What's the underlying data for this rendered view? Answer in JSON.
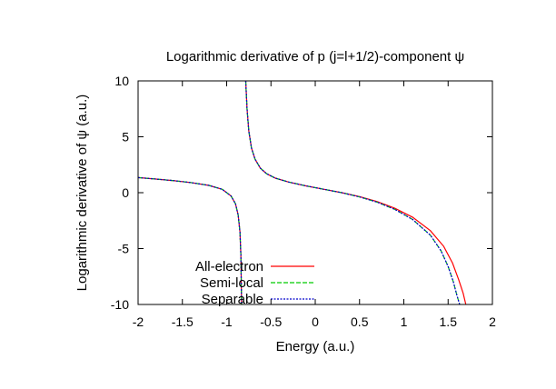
{
  "chart_data": {
    "type": "line",
    "title": "Logarithmic derivative of p (j=l+1/2)-component ψ",
    "xlabel": "Energy (a.u.)",
    "ylabel": "Logarithmic derivative of ψ (a.u.)",
    "xlim": [
      -2,
      2
    ],
    "ylim": [
      -10,
      10
    ],
    "xticks": [
      "-2",
      "-1.5",
      "-1",
      "-0.5",
      "0",
      "0.5",
      "1",
      "1.5",
      "2"
    ],
    "yticks": [
      "10",
      "5",
      "0",
      "-5",
      "-10"
    ],
    "grid": false,
    "legend_position": "bottom-left",
    "series": [
      {
        "name": "All-electron",
        "color": "#ff0000",
        "dash": "solid",
        "segments": [
          [
            [
              -2.0,
              1.35
            ],
            [
              -1.8,
              1.22
            ],
            [
              -1.6,
              1.08
            ],
            [
              -1.4,
              0.9
            ],
            [
              -1.2,
              0.65
            ],
            [
              -1.05,
              0.3
            ],
            [
              -0.95,
              -0.3
            ],
            [
              -0.9,
              -1.0
            ],
            [
              -0.87,
              -2.0
            ],
            [
              -0.85,
              -3.5
            ],
            [
              -0.84,
              -5.5
            ],
            [
              -0.835,
              -8.0
            ],
            [
              -0.832,
              -10.0
            ]
          ],
          [
            [
              -0.785,
              10.0
            ],
            [
              -0.77,
              7.5
            ],
            [
              -0.75,
              5.5
            ],
            [
              -0.72,
              4.0
            ],
            [
              -0.68,
              3.0
            ],
            [
              -0.62,
              2.2
            ],
            [
              -0.55,
              1.7
            ],
            [
              -0.45,
              1.3
            ],
            [
              -0.3,
              0.95
            ],
            [
              -0.1,
              0.6
            ],
            [
              0.1,
              0.3
            ],
            [
              0.3,
              0.0
            ],
            [
              0.5,
              -0.35
            ],
            [
              0.7,
              -0.8
            ],
            [
              0.9,
              -1.4
            ],
            [
              1.1,
              -2.2
            ],
            [
              1.3,
              -3.4
            ],
            [
              1.45,
              -4.8
            ],
            [
              1.55,
              -6.3
            ],
            [
              1.62,
              -7.8
            ],
            [
              1.67,
              -9.0
            ],
            [
              1.7,
              -10.0
            ]
          ]
        ]
      },
      {
        "name": "Semi-local",
        "color": "#00cc00",
        "dash": "dashed",
        "segments": [
          [
            [
              -2.0,
              1.35
            ],
            [
              -1.8,
              1.22
            ],
            [
              -1.6,
              1.08
            ],
            [
              -1.4,
              0.9
            ],
            [
              -1.2,
              0.65
            ],
            [
              -1.05,
              0.3
            ],
            [
              -0.95,
              -0.3
            ],
            [
              -0.9,
              -1.0
            ],
            [
              -0.87,
              -2.0
            ],
            [
              -0.85,
              -3.5
            ],
            [
              -0.84,
              -5.5
            ],
            [
              -0.835,
              -8.0
            ],
            [
              -0.832,
              -10.0
            ]
          ],
          [
            [
              -0.785,
              10.0
            ],
            [
              -0.77,
              7.5
            ],
            [
              -0.75,
              5.5
            ],
            [
              -0.72,
              4.0
            ],
            [
              -0.68,
              3.0
            ],
            [
              -0.62,
              2.2
            ],
            [
              -0.55,
              1.7
            ],
            [
              -0.45,
              1.3
            ],
            [
              -0.3,
              0.95
            ],
            [
              -0.1,
              0.6
            ],
            [
              0.1,
              0.3
            ],
            [
              0.3,
              0.0
            ],
            [
              0.5,
              -0.38
            ],
            [
              0.7,
              -0.85
            ],
            [
              0.9,
              -1.5
            ],
            [
              1.1,
              -2.4
            ],
            [
              1.3,
              -3.8
            ],
            [
              1.42,
              -5.2
            ],
            [
              1.5,
              -6.6
            ],
            [
              1.56,
              -8.0
            ],
            [
              1.6,
              -9.2
            ],
            [
              1.63,
              -10.0
            ]
          ]
        ]
      },
      {
        "name": "Separable",
        "color": "#0000cc",
        "dash": "dotted",
        "segments": [
          [
            [
              -2.0,
              1.35
            ],
            [
              -1.8,
              1.22
            ],
            [
              -1.6,
              1.08
            ],
            [
              -1.4,
              0.9
            ],
            [
              -1.2,
              0.65
            ],
            [
              -1.05,
              0.3
            ],
            [
              -0.95,
              -0.3
            ],
            [
              -0.9,
              -1.0
            ],
            [
              -0.87,
              -2.0
            ],
            [
              -0.85,
              -3.5
            ],
            [
              -0.84,
              -5.5
            ],
            [
              -0.835,
              -8.0
            ],
            [
              -0.832,
              -10.0
            ]
          ],
          [
            [
              -0.785,
              10.0
            ],
            [
              -0.77,
              7.5
            ],
            [
              -0.75,
              5.5
            ],
            [
              -0.72,
              4.0
            ],
            [
              -0.68,
              3.0
            ],
            [
              -0.62,
              2.2
            ],
            [
              -0.55,
              1.7
            ],
            [
              -0.45,
              1.3
            ],
            [
              -0.3,
              0.95
            ],
            [
              -0.1,
              0.6
            ],
            [
              0.1,
              0.3
            ],
            [
              0.3,
              0.0
            ],
            [
              0.5,
              -0.38
            ],
            [
              0.7,
              -0.85
            ],
            [
              0.9,
              -1.5
            ],
            [
              1.1,
              -2.4
            ],
            [
              1.3,
              -3.8
            ],
            [
              1.42,
              -5.2
            ],
            [
              1.5,
              -6.6
            ],
            [
              1.56,
              -8.0
            ],
            [
              1.6,
              -9.2
            ],
            [
              1.63,
              -10.0
            ]
          ]
        ]
      }
    ]
  }
}
